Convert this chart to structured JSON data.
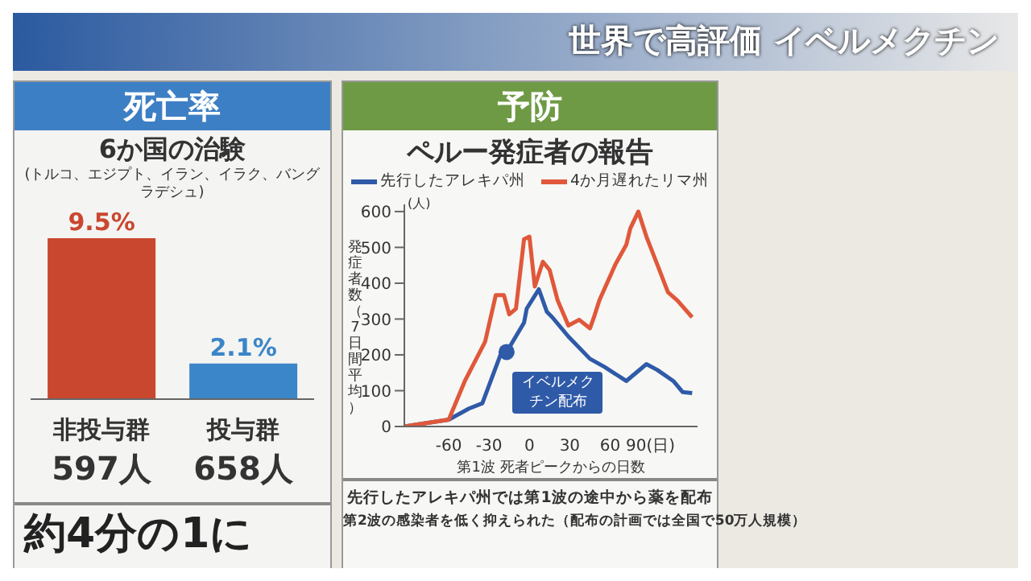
{
  "chart_data": [
    {
      "type": "bar",
      "title": "死亡率",
      "subtitle": "6か国の治験",
      "annotations": [
        "世界で高評価 イベルメクチン",
        "(トルコ、エジプト、イラン、イラク、バングラデシュ)",
        "約4分の1に"
      ],
      "categories": [
        "非投与群\n597人",
        "投与群\n658人"
      ],
      "values": [
        9.5,
        2.1
      ],
      "colors": [
        "#c9472f",
        "#3a86c8"
      ],
      "data_labels": true,
      "value_labels": [
        "9.5%",
        "2.1%"
      ]
    },
    {
      "type": "line",
      "title": "予防",
      "subtitle": "ペルー発症者の報告",
      "xlabel": "第1波 死者ピークからの日数",
      "ylabel": "発症者数（7日間平均）",
      "annotations": [
        {
          "text": "イベルメクチン配布",
          "x": -17,
          "y": 208
        },
        "(人)",
        "先行したアレキパ州では第1波の途中から薬を配布",
        "第2波の感染者を低く抑えられた（配布の計画では全国で50万人規模）"
      ],
      "xlim": [
        -93,
        125
      ],
      "xticks": [
        -60,
        -30,
        0,
        30,
        60,
        {
          "value": 90,
          "label": "90(日)"
        }
      ],
      "ylim": [
        0,
        620
      ],
      "yticks": [
        0,
        100,
        200,
        300,
        400,
        500,
        600
      ],
      "legend": "top",
      "marker": "none",
      "line_style": "solid",
      "series": [
        {
          "name": "先行したアレキパ州",
          "color": "#2f5aa8",
          "x": [
            -93,
            -60,
            -45,
            -35,
            -21,
            -17,
            -4,
            -2,
            7,
            13,
            17,
            29,
            45,
            56,
            72,
            87,
            95,
            107,
            114,
            121
          ],
          "values": [
            0,
            19,
            50,
            65,
            205,
            208,
            290,
            329,
            383,
            320,
            305,
            251,
            189,
            166,
            127,
            174,
            158,
            127,
            96,
            93
          ]
        },
        {
          "name": "4か月遅れたリマ州",
          "color": "#e0583a",
          "x": [
            -93,
            -60,
            -48,
            -33,
            -25,
            -19,
            -15,
            -10,
            -4,
            0,
            4,
            10,
            15,
            21,
            29,
            37,
            45,
            48,
            52,
            64,
            72,
            75,
            81,
            87,
            95,
            103,
            110,
            121
          ],
          "values": [
            0,
            19,
            127,
            236,
            367,
            367,
            313,
            329,
            523,
            530,
            391,
            460,
            437,
            352,
            282,
            298,
            274,
            305,
            352,
            453,
            507,
            553,
            600,
            530,
            453,
            375,
            352,
            305
          ]
        }
      ]
    }
  ]
}
